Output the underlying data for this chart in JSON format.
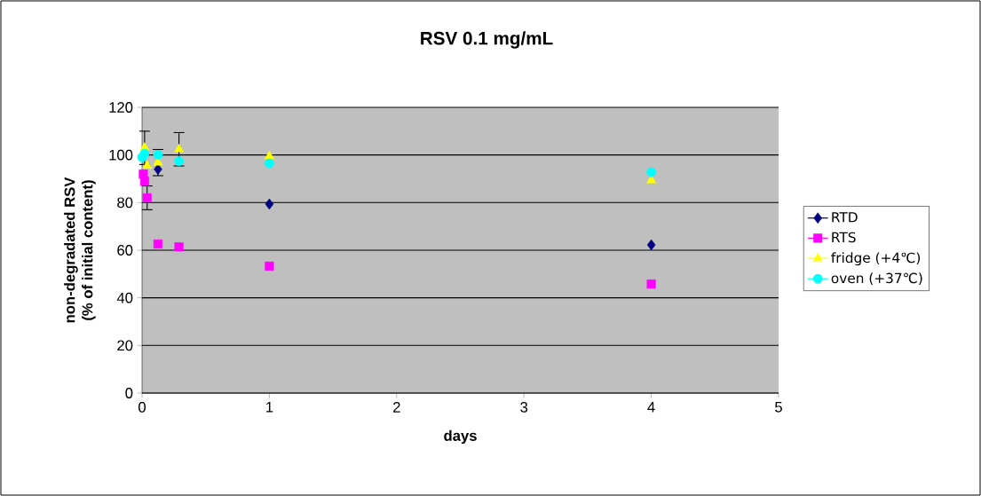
{
  "chart_data": {
    "type": "scatter",
    "title": "RSV 0.1 mg/mL",
    "xlabel": "days",
    "ylabel": "non-degradated RSV\n(% of initial content)",
    "xlim": [
      0,
      5
    ],
    "xticks": [
      0,
      1,
      2,
      3,
      4,
      5
    ],
    "ylim": [
      0,
      120
    ],
    "yticks": [
      0,
      20,
      40,
      60,
      80,
      100,
      120
    ],
    "grid": "y",
    "legend": "right",
    "series": [
      {
        "name": "RTD",
        "color": "#000080",
        "marker": "diamond",
        "x": [
          0.125,
          1,
          4
        ],
        "values": [
          94,
          79.4,
          62.2
        ]
      },
      {
        "name": "RTS",
        "color": "#ff00ff",
        "marker": "square",
        "x": [
          0.01,
          0.02,
          0.04,
          0.125,
          0.29,
          1,
          4
        ],
        "values": [
          92,
          89,
          82,
          62.6,
          61.4,
          53.3,
          45.8
        ],
        "errors": [
          null,
          null,
          5,
          null,
          null,
          null,
          null
        ]
      },
      {
        "name": "fridge (+4℃)",
        "color": "#ffff00",
        "marker": "triangle",
        "x": [
          0.02,
          0.04,
          0.125,
          0.29,
          1,
          4
        ],
        "values": [
          103,
          95.5,
          96.8,
          102.4,
          99.5,
          89.3
        ],
        "errors": [
          7,
          null,
          5.5,
          7,
          null,
          null
        ]
      },
      {
        "name": "oven (+37℃)",
        "color": "#00ffff",
        "marker": "circle",
        "x": [
          0,
          0.02,
          0.125,
          0.29,
          1,
          4
        ],
        "values": [
          99,
          100.6,
          100.1,
          97.4,
          96.5,
          92.8
        ]
      }
    ]
  }
}
